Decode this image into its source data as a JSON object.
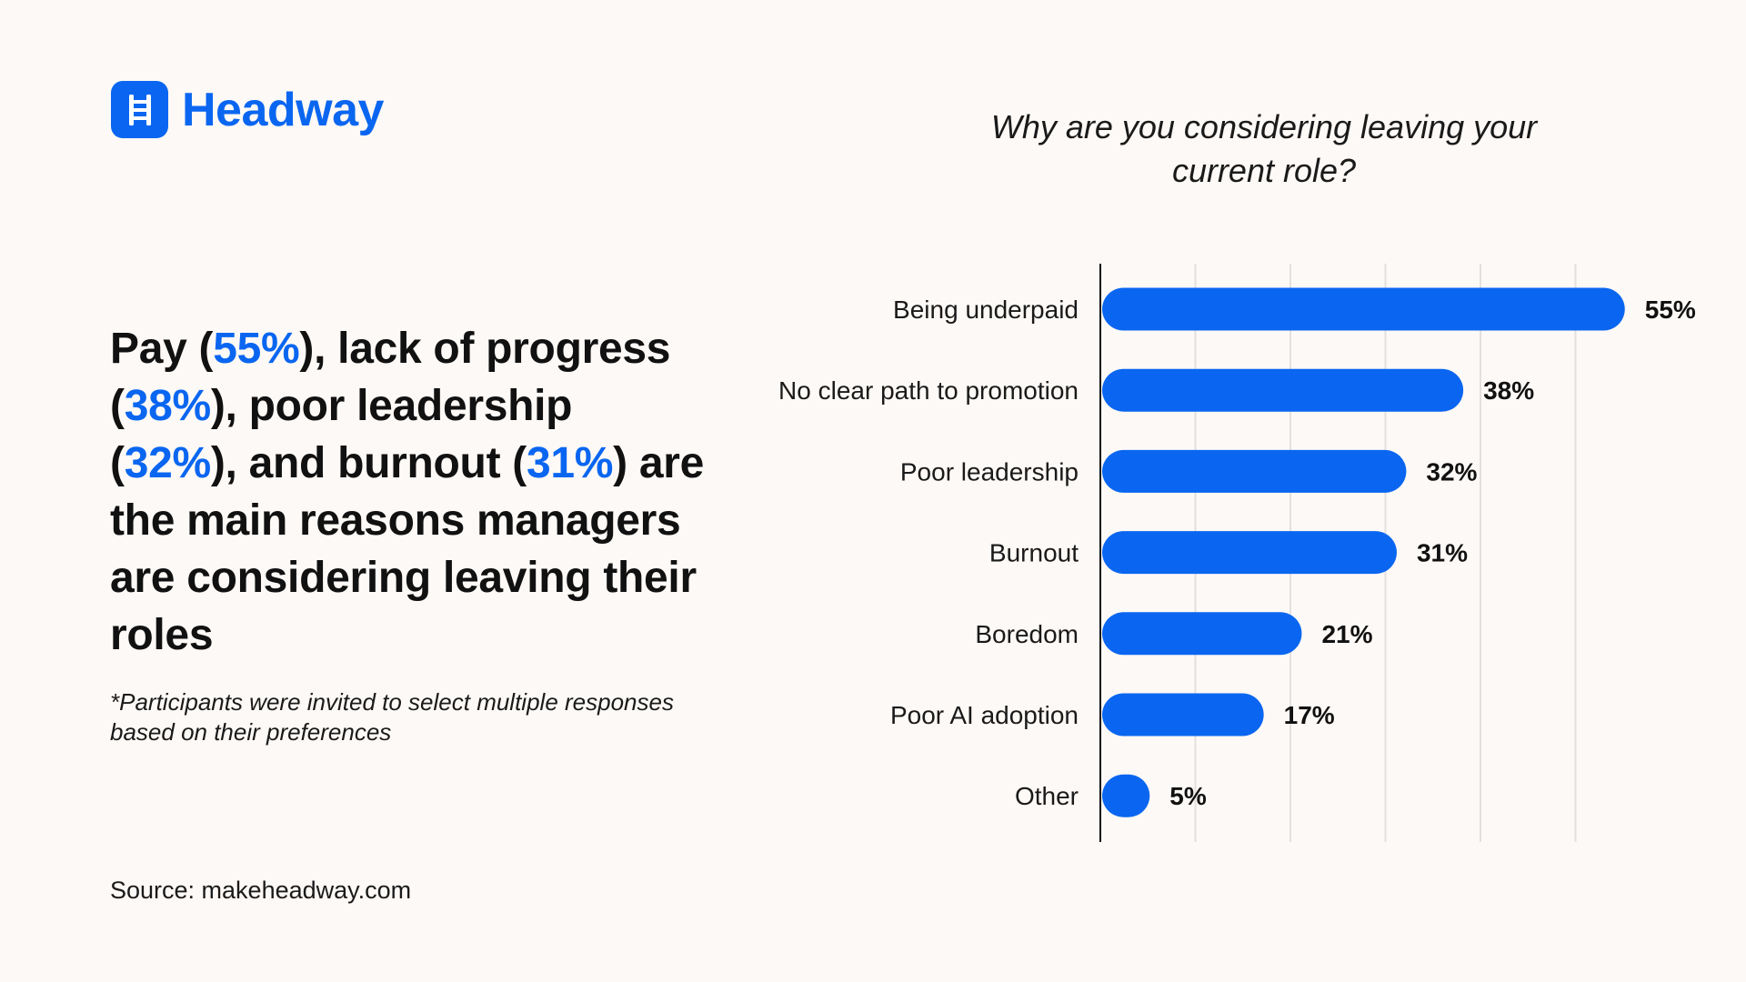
{
  "brand": {
    "name": "Headway",
    "icon": "ladder-icon",
    "color": "#0a66f0"
  },
  "headline": {
    "parts": [
      {
        "text": "Pay (",
        "highlight": false
      },
      {
        "text": "55%",
        "highlight": true
      },
      {
        "text": "), lack of progress (",
        "highlight": false
      },
      {
        "text": "38%",
        "highlight": true
      },
      {
        "text": "), poor leadership (",
        "highlight": false
      },
      {
        "text": "32%",
        "highlight": true
      },
      {
        "text": "), and burnout (",
        "highlight": false
      },
      {
        "text": "31%",
        "highlight": true
      },
      {
        "text": ") are the main reasons managers are considering leaving their roles",
        "highlight": false
      }
    ]
  },
  "footnote": "*Participants were invited to select multiple responses based on their preferences",
  "source": "Source: makeheadway.com",
  "chart_data": {
    "type": "bar",
    "orientation": "horizontal",
    "title": "Why are you considering leaving your current role?",
    "categories": [
      "Being underpaid",
      "No clear path to promotion",
      "Poor leadership",
      "Burnout",
      "Boredom",
      "Poor AI adoption",
      "Other"
    ],
    "values": [
      55,
      38,
      32,
      31,
      21,
      17,
      5
    ],
    "value_labels": [
      "55%",
      "38%",
      "32%",
      "31%",
      "21%",
      "17%",
      "5%"
    ],
    "xlim": [
      0,
      50
    ],
    "grid": true,
    "bar_color": "#0a66f0",
    "grid_color": "#e3e0dd",
    "axis_color": "#111111"
  }
}
